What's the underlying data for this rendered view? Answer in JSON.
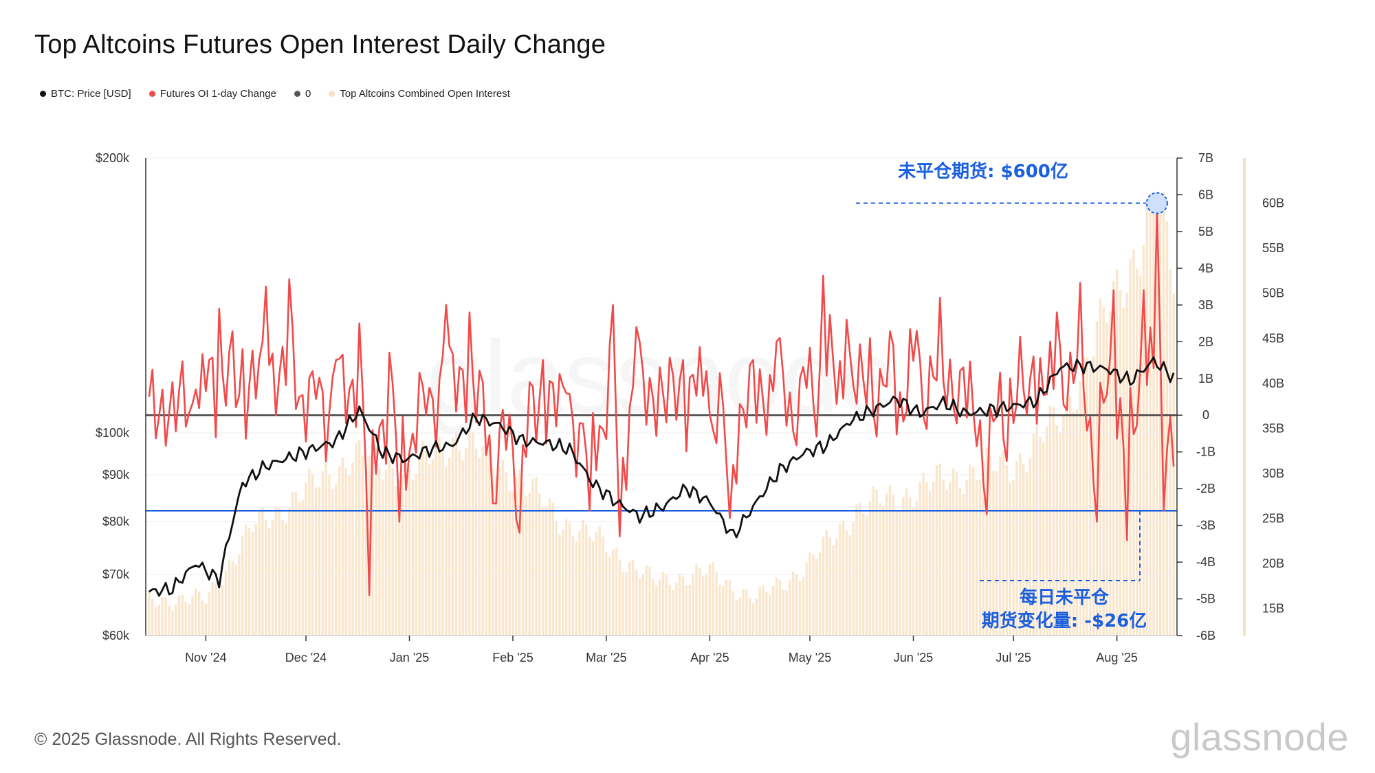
{
  "header": {
    "title": "Top Altcoins Futures Open Interest Daily Change"
  },
  "legend": [
    {
      "label": "BTC: Price [USD]",
      "color": "#111111"
    },
    {
      "label": "Futures OI 1-day Change",
      "color": "#f04a4a"
    },
    {
      "label": "0",
      "color": "#555555"
    },
    {
      "label": "Top Altcoins Combined Open Interest",
      "color": "#f9e2c4"
    }
  ],
  "footer": {
    "copyright": "© 2025 Glassnode. All Rights Reserved.",
    "brand": "glassnode"
  },
  "watermark": "glassnode",
  "annotations": {
    "top": "未平仓期货: $600亿",
    "bottom_line1": "每日未平仓",
    "bottom_line2": "期货变化量: -$26亿"
  },
  "colors": {
    "price": "#111111",
    "oi_change": "#f04a4a",
    "zero_line": "#444444",
    "combined_oi": "#f9e2c4",
    "annotation": "#1a5fe0",
    "reference_line": "#1a5fe0"
  },
  "chart_data": {
    "type": "line",
    "title": "Top Altcoins Futures Open Interest Daily Change",
    "x_ticks": [
      "Nov '24",
      "Dec '24",
      "Jan '25",
      "Feb '25",
      "Mar '25",
      "Apr '25",
      "May '25",
      "Jun '25",
      "Jul '25",
      "Aug '25"
    ],
    "y_left": {
      "scale": "log",
      "range": [
        60000,
        200000
      ],
      "ticks": [
        "$200k",
        "$100k",
        "$90k",
        "$80k",
        "$70k",
        "$60k"
      ],
      "tick_values": [
        200000,
        100000,
        90000,
        80000,
        70000,
        60000
      ]
    },
    "y_right": {
      "range": [
        -6,
        7
      ],
      "unit": "B",
      "ticks": [
        "7B",
        "6B",
        "5B",
        "4B",
        "3B",
        "2B",
        "1B",
        "0",
        "-1B",
        "-2B",
        "-3B",
        "-4B",
        "-5B",
        "-6B"
      ],
      "tick_values": [
        7,
        6,
        5,
        4,
        3,
        2,
        1,
        0,
        -1,
        -2,
        -3,
        -4,
        -5,
        -6
      ]
    },
    "y_right2": {
      "range": [
        12,
        65
      ],
      "unit": "B",
      "ticks": [
        "60B",
        "55B",
        "50B",
        "45B",
        "40B",
        "35B",
        "30B",
        "25B",
        "20B",
        "15B"
      ],
      "tick_values": [
        60,
        55,
        50,
        45,
        40,
        35,
        30,
        25,
        20,
        15
      ]
    },
    "reference_line": {
      "axis": "right",
      "value": -2.6
    },
    "highlight": {
      "date": "2025-08-13",
      "value_combined_oi": 60
    },
    "series": [
      {
        "name": "BTC: Price [USD]",
        "axis": "left",
        "points": [
          [
            "2024-10-15",
            67000
          ],
          [
            "2024-10-22",
            67500
          ],
          [
            "2024-10-29",
            72000
          ],
          [
            "2024-11-05",
            69000
          ],
          [
            "2024-11-12",
            88000
          ],
          [
            "2024-11-19",
            92000
          ],
          [
            "2024-11-26",
            94000
          ],
          [
            "2024-12-03",
            96000
          ],
          [
            "2024-12-10",
            98000
          ],
          [
            "2024-12-17",
            106000
          ],
          [
            "2024-12-24",
            95000
          ],
          [
            "2024-12-31",
            93500
          ],
          [
            "2025-01-07",
            96000
          ],
          [
            "2025-01-14",
            97000
          ],
          [
            "2025-01-21",
            104000
          ],
          [
            "2025-01-28",
            102000
          ],
          [
            "2025-02-04",
            98000
          ],
          [
            "2025-02-11",
            97500
          ],
          [
            "2025-02-18",
            96000
          ],
          [
            "2025-02-25",
            88000
          ],
          [
            "2025-03-04",
            84000
          ],
          [
            "2025-03-11",
            81000
          ],
          [
            "2025-03-18",
            83000
          ],
          [
            "2025-03-25",
            87000
          ],
          [
            "2025-04-01",
            84000
          ],
          [
            "2025-04-08",
            77000
          ],
          [
            "2025-04-15",
            84000
          ],
          [
            "2025-04-22",
            91000
          ],
          [
            "2025-04-29",
            95000
          ],
          [
            "2025-05-06",
            97000
          ],
          [
            "2025-05-13",
            103000
          ],
          [
            "2025-05-20",
            106000
          ],
          [
            "2025-05-27",
            109000
          ],
          [
            "2025-06-03",
            105000
          ],
          [
            "2025-06-10",
            108000
          ],
          [
            "2025-06-17",
            105000
          ],
          [
            "2025-06-24",
            106000
          ],
          [
            "2025-07-01",
            107000
          ],
          [
            "2025-07-08",
            108500
          ],
          [
            "2025-07-15",
            118000
          ],
          [
            "2025-07-22",
            118500
          ],
          [
            "2025-07-29",
            117500
          ],
          [
            "2025-08-05",
            114000
          ],
          [
            "2025-08-12",
            120000
          ],
          [
            "2025-08-15",
            117500
          ],
          [
            "2025-08-18",
            115000
          ]
        ]
      },
      {
        "name": "Futures OI 1-day Change",
        "axis": "right",
        "points": [
          [
            "2024-10-15",
            0.5
          ],
          [
            "2024-10-29",
            0.7
          ],
          [
            "2024-11-05",
            2.9
          ],
          [
            "2024-11-12",
            1.8
          ],
          [
            "2024-11-19",
            3.5
          ],
          [
            "2024-11-26",
            3.7
          ],
          [
            "2024-12-03",
            1.2
          ],
          [
            "2024-12-10",
            1.5
          ],
          [
            "2024-12-17",
            2.5
          ],
          [
            "2024-12-20",
            -4.9
          ],
          [
            "2024-12-26",
            1.7
          ],
          [
            "2024-12-29",
            -2.9
          ],
          [
            "2025-01-05",
            0.8
          ],
          [
            "2025-01-12",
            3.0
          ],
          [
            "2025-01-19",
            2.8
          ],
          [
            "2025-01-26",
            -2.4
          ],
          [
            "2025-02-03",
            -3.2
          ],
          [
            "2025-02-10",
            1.5
          ],
          [
            "2025-02-17",
            0.6
          ],
          [
            "2025-02-24",
            -2.6
          ],
          [
            "2025-03-03",
            3.0
          ],
          [
            "2025-03-05",
            -3.3
          ],
          [
            "2025-03-10",
            2.4
          ],
          [
            "2025-03-17",
            1.3
          ],
          [
            "2025-03-24",
            1.5
          ],
          [
            "2025-03-31",
            1.2
          ],
          [
            "2025-04-07",
            -2.8
          ],
          [
            "2025-04-14",
            1.5
          ],
          [
            "2025-04-21",
            2.0
          ],
          [
            "2025-04-28",
            1.0
          ],
          [
            "2025-05-05",
            3.8
          ],
          [
            "2025-05-12",
            2.6
          ],
          [
            "2025-05-19",
            2.1
          ],
          [
            "2025-05-26",
            1.9
          ],
          [
            "2025-06-02",
            2.3
          ],
          [
            "2025-06-09",
            3.2
          ],
          [
            "2025-06-16",
            1.3
          ],
          [
            "2025-06-23",
            -2.7
          ],
          [
            "2025-06-30",
            1.0
          ],
          [
            "2025-07-07",
            1.6
          ],
          [
            "2025-07-14",
            2.8
          ],
          [
            "2025-07-21",
            3.6
          ],
          [
            "2025-07-26",
            -2.9
          ],
          [
            "2025-07-31",
            3.4
          ],
          [
            "2025-08-04",
            -3.4
          ],
          [
            "2025-08-09",
            3.4
          ],
          [
            "2025-08-13",
            5.7
          ],
          [
            "2025-08-15",
            -2.6
          ],
          [
            "2025-08-18",
            -1.4
          ]
        ]
      },
      {
        "name": "Top Altcoins Combined Open Interest",
        "axis": "right2",
        "points": [
          [
            "2024-10-15",
            16
          ],
          [
            "2024-11-01",
            16
          ],
          [
            "2024-11-15",
            24
          ],
          [
            "2024-12-01",
            28
          ],
          [
            "2024-12-15",
            32
          ],
          [
            "2025-01-01",
            30
          ],
          [
            "2025-01-15",
            34
          ],
          [
            "2025-02-01",
            30
          ],
          [
            "2025-02-15",
            25
          ],
          [
            "2025-03-01",
            22
          ],
          [
            "2025-03-15",
            18
          ],
          [
            "2025-04-01",
            19
          ],
          [
            "2025-04-15",
            16
          ],
          [
            "2025-05-01",
            20
          ],
          [
            "2025-05-15",
            26
          ],
          [
            "2025-06-01",
            28
          ],
          [
            "2025-06-15",
            30
          ],
          [
            "2025-07-01",
            31
          ],
          [
            "2025-07-15",
            36
          ],
          [
            "2025-08-01",
            50
          ],
          [
            "2025-08-13",
            60
          ],
          [
            "2025-08-18",
            52
          ]
        ]
      }
    ]
  }
}
